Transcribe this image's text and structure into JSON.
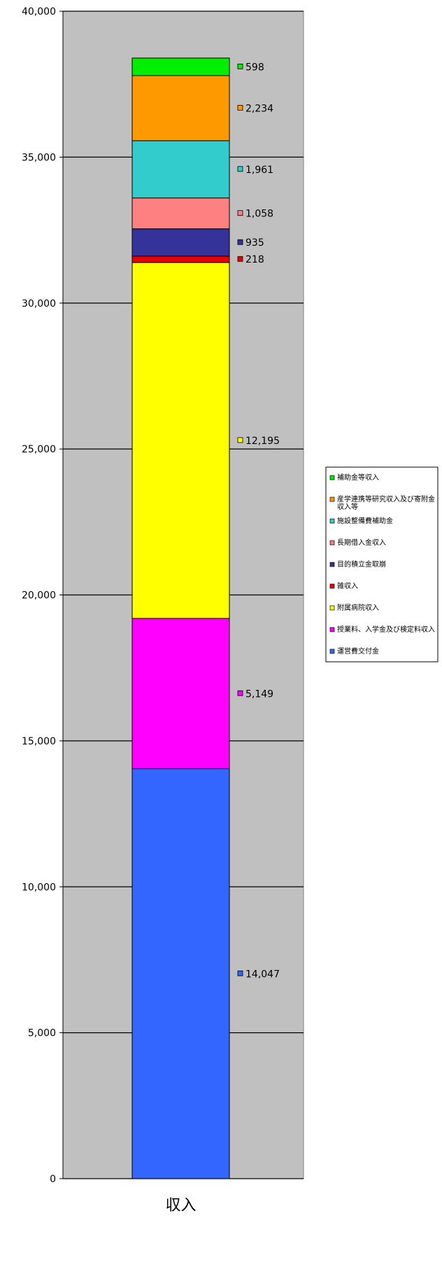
{
  "chart_data": {
    "type": "bar",
    "stacked": true,
    "categories": [
      "収入"
    ],
    "ylim": [
      0,
      40000
    ],
    "yticks": [
      0,
      5000,
      10000,
      15000,
      20000,
      25000,
      30000,
      35000,
      40000
    ],
    "ytick_labels": [
      "0",
      "5,000",
      "10,000",
      "15,000",
      "20,000",
      "25,000",
      "30,000",
      "35,000",
      "40,000"
    ],
    "grid": true,
    "legend_position": "right",
    "series": [
      {
        "name": "運営費交付金",
        "values": [
          14047
        ],
        "label": "14,047",
        "color": "#3366ff"
      },
      {
        "name": "授業料、入学金及び検定料収入",
        "values": [
          5149
        ],
        "label": "5,149",
        "color": "#ff00ff"
      },
      {
        "name": "附属病院収入",
        "values": [
          12195
        ],
        "label": "12,195",
        "color": "#ffff00"
      },
      {
        "name": "雑収入",
        "values": [
          218
        ],
        "label": "218",
        "color": "#ee0000"
      },
      {
        "name": "目的積立金取崩",
        "values": [
          935
        ],
        "label": "935",
        "color": "#333399"
      },
      {
        "name": "長期借入金収入",
        "values": [
          1058
        ],
        "label": "1,058",
        "color": "#ff8080"
      },
      {
        "name": "施設整備費補助金",
        "values": [
          1961
        ],
        "label": "1,961",
        "color": "#33cccc"
      },
      {
        "name": "産学連携等研究収入及び寄附金収入等",
        "values": [
          2234
        ],
        "label": "2,234",
        "color": "#ff9900"
      },
      {
        "name": "補助金等収入",
        "values": [
          598
        ],
        "label": "598",
        "color": "#00ee00"
      }
    ],
    "legend_order": [
      "補助金等収入",
      "産学連携等研究収入及び寄附金収入等",
      "施設整備費補助金",
      "長期借入金収入",
      "目的積立金取崩",
      "雑収入",
      "附属病院収入",
      "授業料、入学金及び検定料収入",
      "運営費交付金"
    ]
  },
  "colors": {
    "plot_background": "#c0c0c0",
    "gridline": "#000000"
  }
}
